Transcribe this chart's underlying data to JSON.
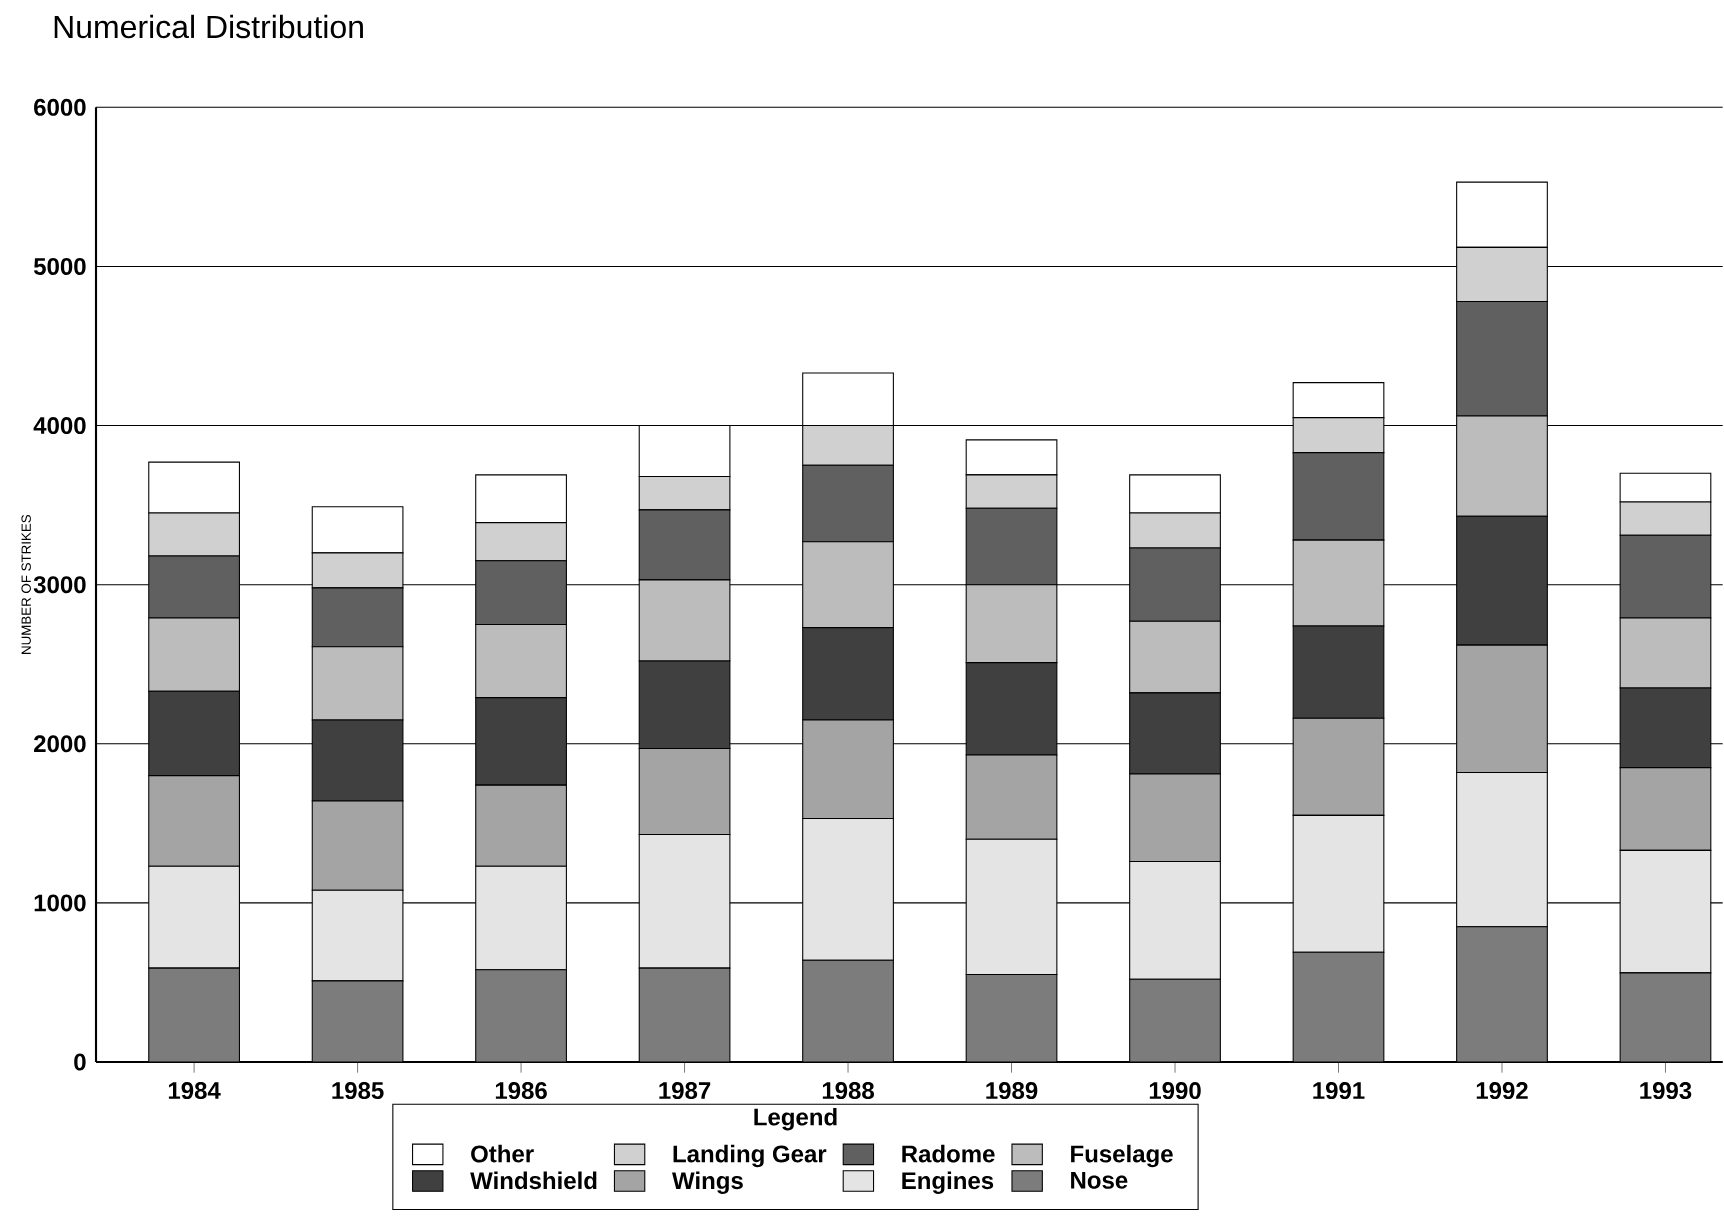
{
  "chart_data": {
    "type": "bar",
    "title": "Numerical Distribution",
    "ylabel": "NUMBER OF STRIKES",
    "legend_title": "Legend",
    "categories": [
      "1984",
      "1985",
      "1986",
      "1987",
      "1988",
      "1989",
      "1990",
      "1991",
      "1992",
      "1993"
    ],
    "stacked": true,
    "grid": "y",
    "legend": "bottom",
    "ylim": [
      0,
      6000
    ],
    "yticks": [
      0,
      1000,
      2000,
      3000,
      4000,
      5000,
      6000
    ],
    "series": [
      {
        "name": "Nose",
        "color": "#7c7c7c",
        "values": [
          590,
          510,
          580,
          590,
          640,
          550,
          520,
          690,
          850,
          560
        ]
      },
      {
        "name": "Engines",
        "color": "#e4e4e4",
        "values": [
          640,
          570,
          650,
          840,
          890,
          850,
          740,
          860,
          970,
          770
        ]
      },
      {
        "name": "Wings",
        "color": "#a4a4a4",
        "values": [
          570,
          560,
          510,
          540,
          620,
          530,
          550,
          610,
          800,
          520
        ]
      },
      {
        "name": "Windshield",
        "color": "#404040",
        "values": [
          530,
          510,
          550,
          550,
          580,
          580,
          510,
          580,
          810,
          500
        ]
      },
      {
        "name": "Fuselage",
        "color": "#bcbcbc",
        "values": [
          460,
          460,
          460,
          510,
          540,
          490,
          450,
          540,
          630,
          440
        ]
      },
      {
        "name": "Radome",
        "color": "#606060",
        "values": [
          390,
          370,
          400,
          440,
          480,
          480,
          460,
          550,
          720,
          520
        ]
      },
      {
        "name": "Landing Gear",
        "color": "#d0d0d0",
        "values": [
          270,
          220,
          240,
          210,
          250,
          210,
          220,
          220,
          340,
          210
        ]
      },
      {
        "name": "Other",
        "color": "#ffffff",
        "values": [
          320,
          290,
          300,
          320,
          330,
          220,
          240,
          220,
          410,
          180
        ]
      }
    ]
  }
}
